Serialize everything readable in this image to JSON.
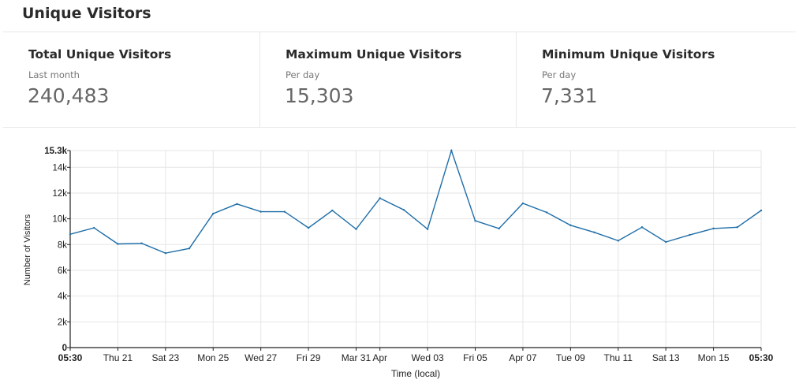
{
  "page": {
    "title": "Unique Visitors"
  },
  "stats": [
    {
      "title": "Total Unique Visitors",
      "subtitle": "Last month",
      "value": "240,483"
    },
    {
      "title": "Maximum Unique Visitors",
      "subtitle": "Per day",
      "value": "15,303"
    },
    {
      "title": "Minimum Unique Visitors",
      "subtitle": "Per day",
      "value": "7,331"
    }
  ],
  "chart_data": {
    "type": "line",
    "xlabel": "Time (local)",
    "ylabel": "Number of Visitors",
    "ylim": [
      0,
      15303
    ],
    "y_ticks": [
      0,
      2000,
      4000,
      6000,
      8000,
      10000,
      12000,
      14000,
      15303
    ],
    "y_tick_labels": [
      "0",
      "2k",
      "4k",
      "6k",
      "8k",
      "10k",
      "12k",
      "14k",
      "15.3k"
    ],
    "x_tick_labels": [
      {
        "i": 0,
        "label": "05:30",
        "bold": true
      },
      {
        "i": 2,
        "label": "Thu 21"
      },
      {
        "i": 4,
        "label": "Sat 23"
      },
      {
        "i": 6,
        "label": "Mon 25"
      },
      {
        "i": 8,
        "label": "Wed 27"
      },
      {
        "i": 10,
        "label": "Fri 29"
      },
      {
        "i": 12,
        "label": "Mar 31"
      },
      {
        "i": 13,
        "label": "Apr"
      },
      {
        "i": 15,
        "label": "Wed 03"
      },
      {
        "i": 17,
        "label": "Fri 05"
      },
      {
        "i": 19,
        "label": "Apr 07"
      },
      {
        "i": 21,
        "label": "Tue 09"
      },
      {
        "i": 23,
        "label": "Thu 11"
      },
      {
        "i": 25,
        "label": "Sat 13"
      },
      {
        "i": 27,
        "label": "Mon 15"
      },
      {
        "i": 29,
        "label": "05:30",
        "bold": true
      }
    ],
    "grid": true,
    "line_color": "#1f6ea8",
    "series": [
      {
        "values": [
          8800,
          9300,
          8050,
          8100,
          7331,
          7700,
          10400,
          11150,
          10550,
          10550,
          9300,
          10650,
          9200,
          11600,
          10700,
          9200,
          15303,
          9850,
          9250,
          11200,
          10500,
          9500,
          8950,
          8300,
          9350,
          8200,
          8750,
          9250,
          9350,
          10650
        ]
      }
    ]
  }
}
